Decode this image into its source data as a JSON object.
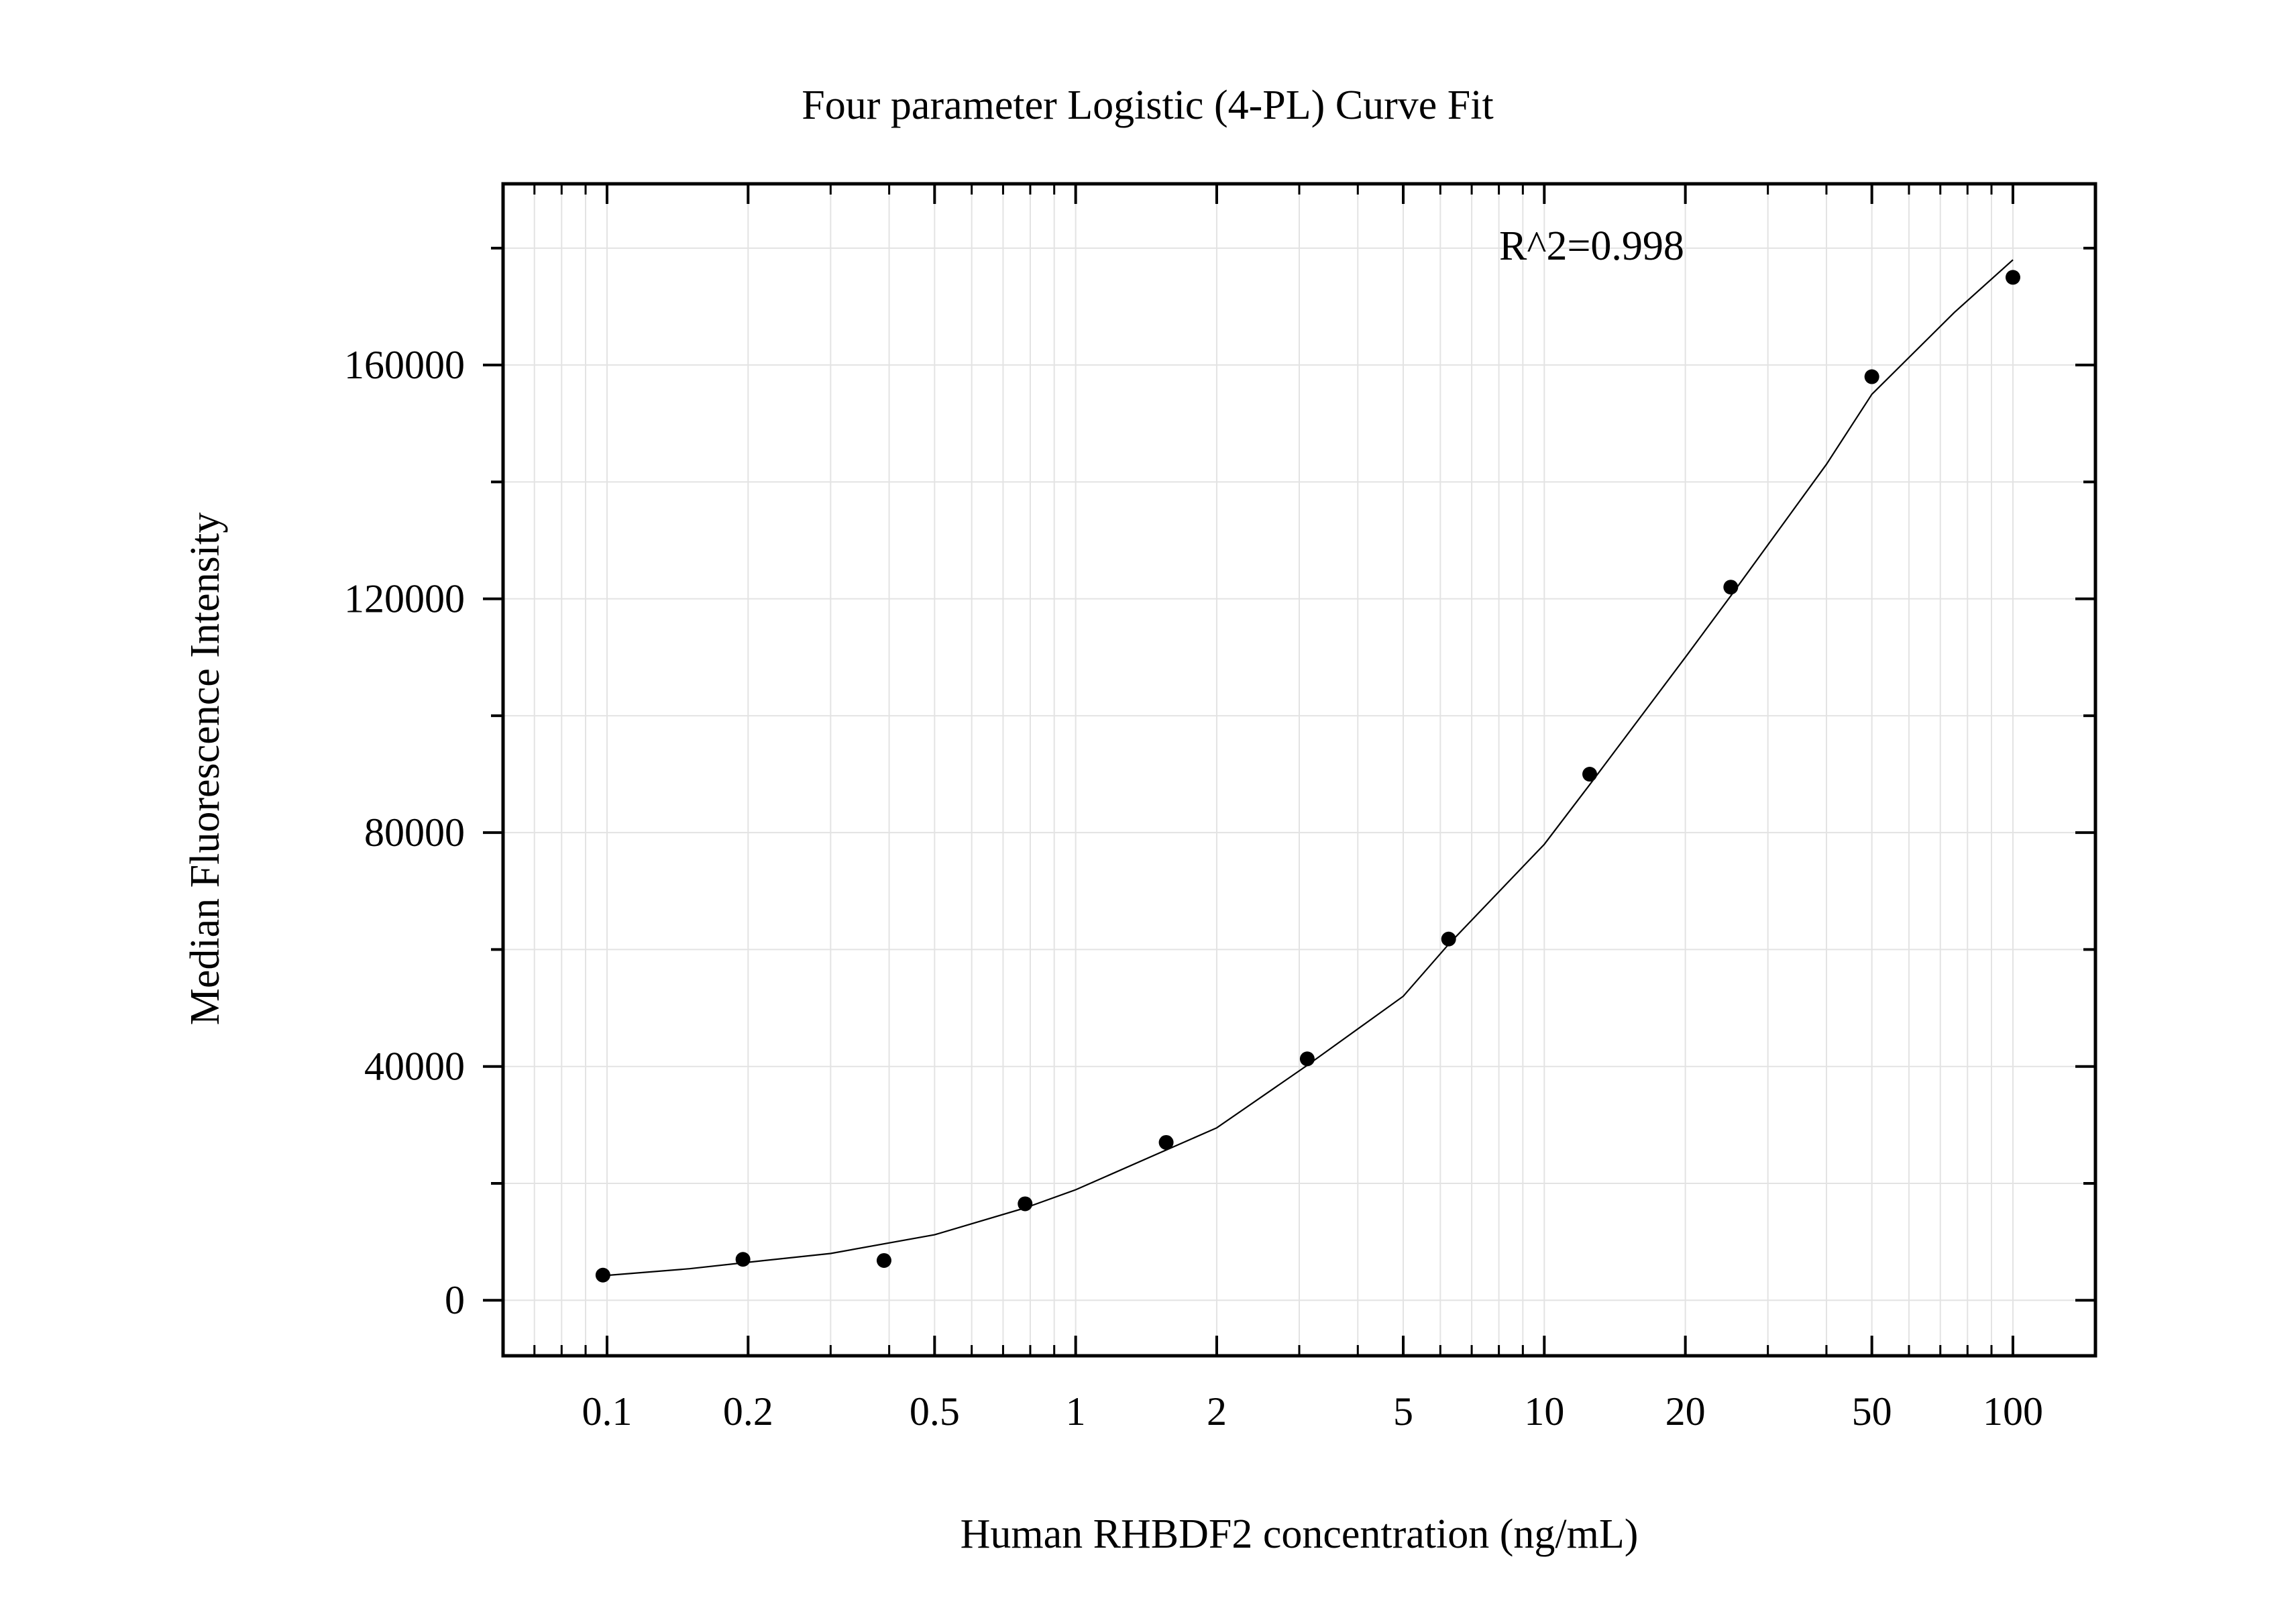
{
  "chart_data": {
    "type": "scatter",
    "title": "Four parameter Logistic (4-PL) Curve Fit",
    "xlabel": "Human RHBDF2 concentration (ng/mL)",
    "ylabel": "Median Fluorescence Intensity",
    "x_scale": "log",
    "xlim": [
      0.06,
      150
    ],
    "ylim": [
      -9500,
      191000
    ],
    "grid": true,
    "x_ticks": [
      0.1,
      0.2,
      0.5,
      1,
      2,
      5,
      10,
      20,
      50,
      100
    ],
    "x_tick_labels": [
      "0.1",
      "0.2",
      "0.5",
      "1",
      "2",
      "5",
      "10",
      "20",
      "50",
      "100"
    ],
    "y_ticks": [
      0,
      40000,
      80000,
      120000,
      160000
    ],
    "y_tick_labels": [
      "0",
      "40000",
      "80000",
      "120000",
      "160000"
    ],
    "annotation": "R^2=0.998",
    "series": [
      {
        "type": "scatter",
        "x": [
          0.098,
          0.195,
          0.39,
          0.78,
          1.56,
          3.12,
          6.25,
          12.5,
          25,
          50,
          100
        ],
        "y": [
          4300,
          7000,
          6800,
          16500,
          27000,
          41300,
          61800,
          90000,
          122000,
          158000,
          175000
        ]
      },
      {
        "type": "line",
        "x": [
          0.098,
          0.15,
          0.2,
          0.3,
          0.5,
          0.78,
          1,
          1.56,
          2,
          3.12,
          5,
          6.25,
          10,
          12.5,
          20,
          25,
          40,
          50,
          75,
          100
        ],
        "y": [
          4200,
          5400,
          6500,
          8000,
          11200,
          15800,
          18900,
          25700,
          29500,
          40200,
          52000,
          60900,
          78000,
          88200,
          110000,
          120500,
          143000,
          155000,
          169000,
          178000
        ]
      }
    ]
  }
}
